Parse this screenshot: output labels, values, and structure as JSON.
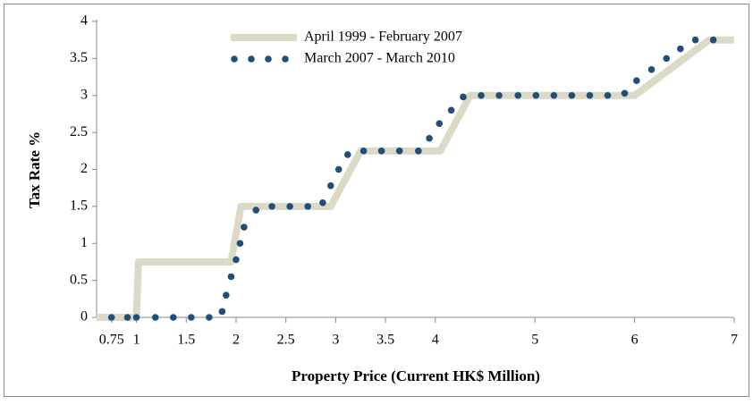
{
  "chart_data": {
    "type": "line-scatter",
    "x_label": "Property Price (Current HK$ Million)",
    "y_label": "Tax Rate %",
    "xlim": [
      0.6,
      7
    ],
    "ylim": [
      0,
      4
    ],
    "xticks": [
      0.75,
      1,
      1.5,
      2,
      2.5,
      3,
      3.5,
      4,
      5,
      6,
      7
    ],
    "yticks": [
      0,
      0.5,
      1,
      1.5,
      2,
      2.5,
      3,
      3.5,
      4
    ],
    "legend": "top",
    "series": [
      {
        "name": "April 1999 - February 2007",
        "color": "#dcd9c6",
        "style": "solid",
        "x": [
          0.6,
          1,
          1.02,
          1.95,
          2.05,
          2.95,
          3.25,
          4.05,
          4.35,
          6,
          6.75,
          7
        ],
        "values": [
          0,
          0,
          0.75,
          0.75,
          1.5,
          1.5,
          2.25,
          2.25,
          3,
          3,
          3.75,
          3.75
        ]
      },
      {
        "name": "March 2007 - March 2010",
        "color": "#1f4e79",
        "style": "dotted",
        "x": [
          0.75,
          0.91,
          1,
          1.19,
          1.37,
          1.55,
          1.73,
          1.86,
          1.9,
          1.95,
          2,
          2.04,
          2.08,
          2.2,
          2.36,
          2.54,
          2.72,
          2.87,
          2.95,
          3.03,
          3.12,
          3.28,
          3.46,
          3.64,
          3.83,
          3.94,
          4.04,
          4.16,
          4.28,
          4.46,
          4.64,
          4.83,
          5.01,
          5.19,
          5.37,
          5.55,
          5.73,
          5.9,
          6.02,
          6.17,
          6.32,
          6.46,
          6.61,
          6.79
        ],
        "values": [
          0,
          0,
          0,
          0,
          0,
          0,
          0,
          0.08,
          0.3,
          0.55,
          0.78,
          1.0,
          1.22,
          1.45,
          1.5,
          1.5,
          1.5,
          1.55,
          1.78,
          2.0,
          2.2,
          2.25,
          2.25,
          2.25,
          2.25,
          2.42,
          2.62,
          2.8,
          2.98,
          3,
          3,
          3,
          3,
          3,
          3,
          3,
          3,
          3.03,
          3.2,
          3.35,
          3.5,
          3.63,
          3.75,
          3.75
        ]
      }
    ]
  }
}
